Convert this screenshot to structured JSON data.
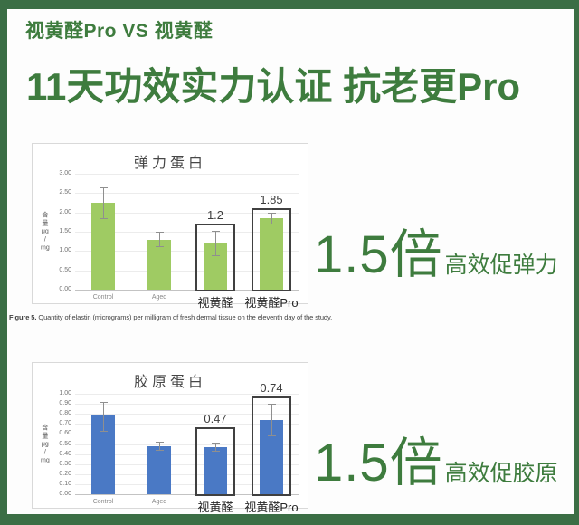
{
  "theme": {
    "frame": "#3b6e45",
    "panel": "#fdfdfd",
    "accent": "#3e7c3e",
    "chart-border": "#d9d9d9",
    "grid": "#ececec",
    "err": "#8f8f8f",
    "boxline": "#404040"
  },
  "header": {
    "subtitle": "视黄醛Pro VS 视黄醛",
    "title": "11天功效实力认证 抗老更Pro"
  },
  "caption": {
    "label": "Figure 5.",
    "text": " Quantity of elastin (micrograms) per milligram of fresh dermal tissue on the eleventh day of the study."
  },
  "highlights": [
    {
      "value": "1.5倍",
      "text": "高效促弹力"
    },
    {
      "value": "1.5倍",
      "text": "高效促胶原"
    }
  ],
  "chart_data": [
    {
      "type": "bar",
      "title": "弹力蛋白",
      "ylabel": "含量 μg/mg",
      "ylabel_lines": [
        "含",
        "量",
        "μg",
        "/",
        "mg"
      ],
      "ylim": [
        0,
        3.0
      ],
      "yticks": [
        "3.00",
        "2.50",
        "2.00",
        "1.50",
        "1.00",
        "0.50",
        "0.00"
      ],
      "grid": true,
      "legend": false,
      "bar_color": "#9fcb63",
      "categories": [
        "Control",
        "Aged",
        "视黄醛",
        "视黄醛Pro"
      ],
      "values": [
        2.25,
        1.3,
        1.2,
        1.85
      ],
      "error_low": [
        1.85,
        1.12,
        0.88,
        1.7
      ],
      "error_high": [
        2.65,
        1.5,
        1.52,
        2.0
      ],
      "data_labels": [
        null,
        null,
        "1.2",
        "1.85"
      ],
      "highlight": [
        false,
        false,
        true,
        true
      ],
      "box_tops": [
        null,
        null,
        1.7,
        2.1
      ]
    },
    {
      "type": "bar",
      "title": "胶原蛋白",
      "ylabel": "含量 μg/mg",
      "ylabel_lines": [
        "含",
        "量",
        "μg",
        "/",
        "mg"
      ],
      "ylim": [
        0,
        1.0
      ],
      "yticks": [
        "1.00",
        "0.90",
        "0.80",
        "0.70",
        "0.60",
        "0.50",
        "0.40",
        "0.30",
        "0.20",
        "0.10",
        "0.00"
      ],
      "grid": true,
      "legend": false,
      "bar_color": "#4a79c5",
      "categories": [
        "Control",
        "Aged",
        "视黄醛",
        "视黄醛Pro"
      ],
      "values": [
        0.78,
        0.48,
        0.47,
        0.74
      ],
      "error_low": [
        0.63,
        0.44,
        0.43,
        0.59
      ],
      "error_high": [
        0.92,
        0.52,
        0.51,
        0.9
      ],
      "data_labels": [
        null,
        null,
        "0.47",
        "0.74"
      ],
      "highlight": [
        false,
        false,
        true,
        true
      ],
      "box_tops": [
        null,
        null,
        0.67,
        0.97
      ]
    }
  ]
}
